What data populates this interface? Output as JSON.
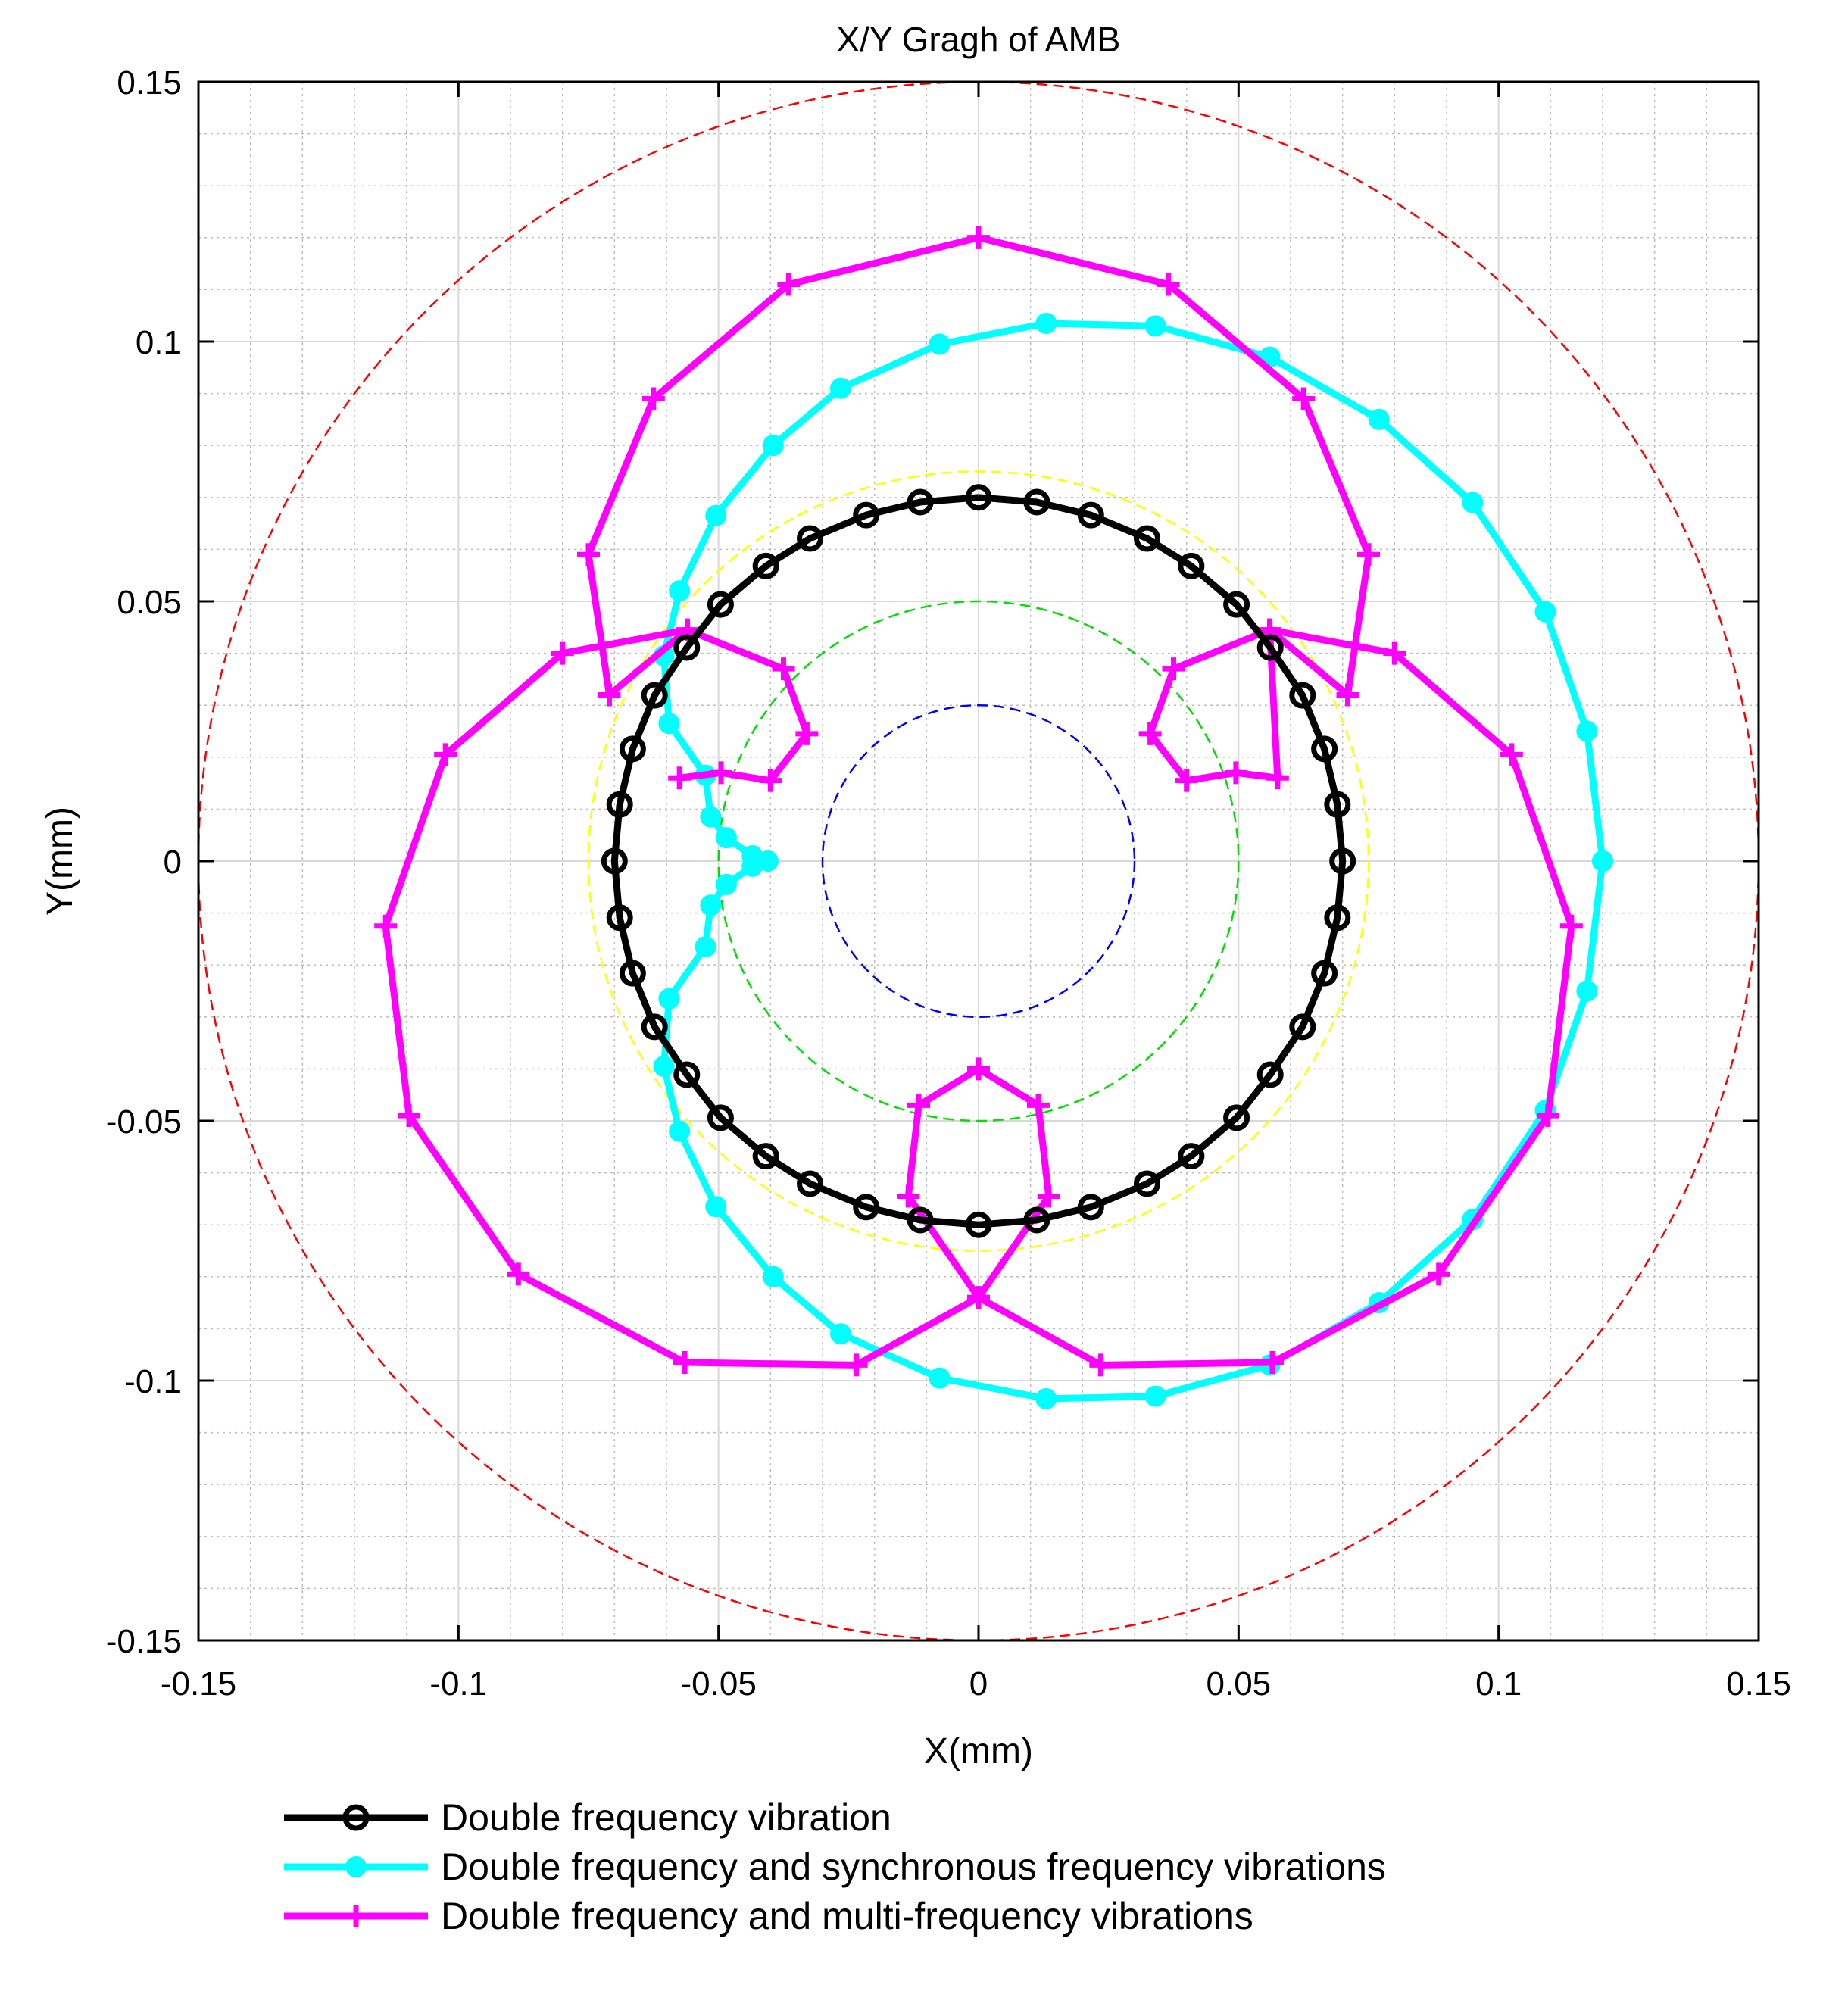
{
  "chart_data": {
    "type": "line",
    "title": "X/Y Gragh of AMB",
    "xlabel": "X(mm)",
    "ylabel": "Y(mm)",
    "xlim": [
      -0.15,
      0.15
    ],
    "ylim": [
      -0.15,
      0.15
    ],
    "grid": "major and minor",
    "x_ticks": [
      -0.15,
      -0.1,
      -0.05,
      0,
      0.05,
      0.1,
      0.15
    ],
    "x_tick_labels": [
      "-0.15",
      "-0.1",
      "-0.05",
      "0",
      "0.05",
      "0.1",
      "0.15"
    ],
    "y_ticks": [
      0.15,
      0.1,
      0.05,
      0,
      -0.05,
      -0.1,
      -0.15
    ],
    "y_tick_labels": [
      "0.15",
      "0.1",
      "0.05",
      "0",
      "-0.05",
      "-0.1",
      "-0.15"
    ],
    "legend_position": "bottom-outside",
    "reference_circles": [
      {
        "radius": 0.15,
        "color": "#ff0000"
      },
      {
        "radius": 0.075,
        "color": "#ffff00"
      },
      {
        "radius": 0.05,
        "color": "#00e000"
      },
      {
        "radius": 0.03,
        "color": "#0000ff"
      }
    ],
    "series": [
      {
        "name": "Double frequency vibration",
        "color": "#000000",
        "marker": "open-circle",
        "points": [
          [
            0.0,
            0.07
          ],
          [
            0.0112,
            0.0691
          ],
          [
            0.0216,
            0.0666
          ],
          [
            0.0324,
            0.0621
          ],
          [
            0.0409,
            0.0568
          ],
          [
            0.0496,
            0.0494
          ],
          [
            0.0561,
            0.0411
          ],
          [
            0.0623,
            0.0319
          ],
          [
            0.0665,
            0.0216
          ],
          [
            0.069,
            0.0109
          ],
          [
            0.07,
            0.0
          ],
          [
            0.069,
            -0.0109
          ],
          [
            0.0665,
            -0.0216
          ],
          [
            0.0623,
            -0.0319
          ],
          [
            0.0561,
            -0.0411
          ],
          [
            0.0496,
            -0.0494
          ],
          [
            0.0409,
            -0.0568
          ],
          [
            0.0324,
            -0.0621
          ],
          [
            0.0216,
            -0.0666
          ],
          [
            0.0112,
            -0.0691
          ],
          [
            0.0,
            -0.07
          ],
          [
            -0.0112,
            -0.0691
          ],
          [
            -0.0216,
            -0.0666
          ],
          [
            -0.0324,
            -0.0621
          ],
          [
            -0.0409,
            -0.0568
          ],
          [
            -0.0496,
            -0.0494
          ],
          [
            -0.0561,
            -0.0411
          ],
          [
            -0.0623,
            -0.0319
          ],
          [
            -0.0665,
            -0.0216
          ],
          [
            -0.069,
            -0.0109
          ],
          [
            -0.07,
            0.0
          ],
          [
            -0.069,
            0.0109
          ],
          [
            -0.0665,
            0.0216
          ],
          [
            -0.0623,
            0.0319
          ],
          [
            -0.0561,
            0.0411
          ],
          [
            -0.0496,
            0.0494
          ],
          [
            -0.0409,
            0.0568
          ],
          [
            -0.0324,
            0.0621
          ],
          [
            -0.0216,
            0.0666
          ],
          [
            -0.0112,
            0.0691
          ],
          [
            0.0,
            0.07
          ]
        ]
      },
      {
        "name": "Double frequency and synchronous frequency vibrations",
        "color": "#00ffff",
        "marker": "filled-circle",
        "points": [
          [
            0.12,
            0.0
          ],
          [
            0.117,
            0.025
          ],
          [
            0.109,
            0.048
          ],
          [
            0.095,
            0.069
          ],
          [
            0.077,
            0.085
          ],
          [
            0.056,
            0.097
          ],
          [
            0.034,
            0.103
          ],
          [
            0.013,
            0.1035
          ],
          [
            -0.0075,
            0.0995
          ],
          [
            -0.0265,
            0.091
          ],
          [
            -0.0395,
            0.08
          ],
          [
            -0.0505,
            0.0665
          ],
          [
            -0.0575,
            0.052
          ],
          [
            -0.0605,
            0.0395
          ],
          [
            -0.0595,
            0.0265
          ],
          [
            -0.0525,
            0.0165
          ],
          [
            -0.0515,
            0.0085
          ],
          [
            -0.0485,
            0.0045
          ],
          [
            -0.0435,
            0.001
          ],
          [
            -0.0405,
            0.0
          ],
          [
            -0.0435,
            -0.001
          ],
          [
            -0.0485,
            -0.0045
          ],
          [
            -0.0515,
            -0.0085
          ],
          [
            -0.0525,
            -0.0165
          ],
          [
            -0.0595,
            -0.0265
          ],
          [
            -0.0605,
            -0.0395
          ],
          [
            -0.0575,
            -0.052
          ],
          [
            -0.0505,
            -0.0665
          ],
          [
            -0.0395,
            -0.08
          ],
          [
            -0.0265,
            -0.091
          ],
          [
            -0.0075,
            -0.0995
          ],
          [
            0.013,
            -0.1035
          ],
          [
            0.034,
            -0.103
          ],
          [
            0.056,
            -0.097
          ],
          [
            0.077,
            -0.085
          ],
          [
            0.095,
            -0.069
          ],
          [
            0.109,
            -0.048
          ],
          [
            0.117,
            -0.025
          ],
          [
            0.12,
            0.0
          ]
        ]
      },
      {
        "name": "Double frequency and multi-frequency vibrations",
        "color": "#ff00ff",
        "marker": "plus",
        "points": [
          [
            0.0,
            0.12
          ],
          [
            0.0365,
            0.111
          ],
          [
            0.0625,
            0.089
          ],
          [
            0.075,
            0.059
          ],
          [
            0.071,
            0.032
          ],
          [
            0.056,
            0.0445
          ],
          [
            0.08,
            0.04
          ],
          [
            0.1025,
            0.0205
          ],
          [
            0.114,
            -0.0125
          ],
          [
            0.1095,
            -0.049
          ],
          [
            0.0885,
            -0.0795
          ],
          [
            0.0565,
            -0.0965
          ],
          [
            0.0235,
            -0.097
          ],
          [
            0.0,
            -0.084
          ],
          [
            0.0135,
            -0.0645
          ],
          [
            0.0115,
            -0.047
          ],
          [
            0.0,
            -0.04
          ],
          [
            -0.0115,
            -0.047
          ],
          [
            -0.0135,
            -0.0645
          ],
          [
            0.0,
            -0.084
          ],
          [
            -0.0235,
            -0.097
          ],
          [
            -0.0565,
            -0.0965
          ],
          [
            -0.0885,
            -0.0795
          ],
          [
            -0.1095,
            -0.049
          ],
          [
            -0.114,
            -0.0125
          ],
          [
            -0.1025,
            0.0205
          ],
          [
            -0.08,
            0.04
          ],
          [
            -0.056,
            0.0445
          ],
          [
            -0.071,
            0.032
          ],
          [
            -0.075,
            0.059
          ],
          [
            -0.0625,
            0.089
          ],
          [
            -0.0365,
            0.111
          ],
          [
            0.0,
            0.12
          ]
        ],
        "extra_loops": [
          [
            [
              -0.056,
              0.0445
            ],
            [
              -0.0375,
              0.037
            ],
            [
              -0.033,
              0.0245
            ],
            [
              -0.04,
              0.0155
            ],
            [
              -0.0495,
              0.017
            ],
            [
              -0.0575,
              0.016
            ]
          ],
          [
            [
              0.056,
              0.0445
            ],
            [
              0.0375,
              0.037
            ],
            [
              0.033,
              0.0245
            ],
            [
              0.04,
              0.0155
            ],
            [
              0.0495,
              0.017
            ],
            [
              0.0575,
              0.016
            ],
            [
              0.056,
              0.0445
            ]
          ]
        ]
      }
    ]
  }
}
